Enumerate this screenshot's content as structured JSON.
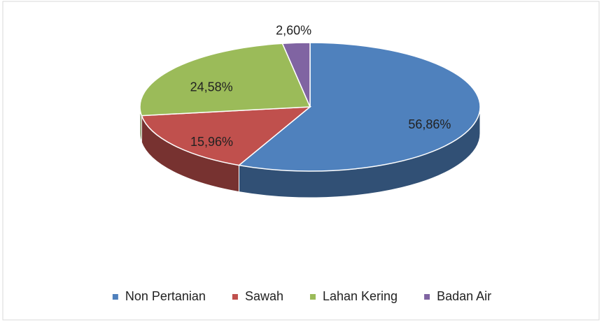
{
  "chart_data": {
    "type": "pie3d",
    "categories": [
      "Non Pertanian",
      "Sawah",
      "Lahan Kering",
      "Badan Air"
    ],
    "values": [
      56.86,
      15.96,
      24.58,
      2.6
    ],
    "value_labels": [
      "56,86%",
      "15,96%",
      "24,58%",
      "2,60%"
    ],
    "colors": [
      "#4f81bd",
      "#c0504d",
      "#9bbb59",
      "#8064a2"
    ],
    "legend": "bottom"
  }
}
